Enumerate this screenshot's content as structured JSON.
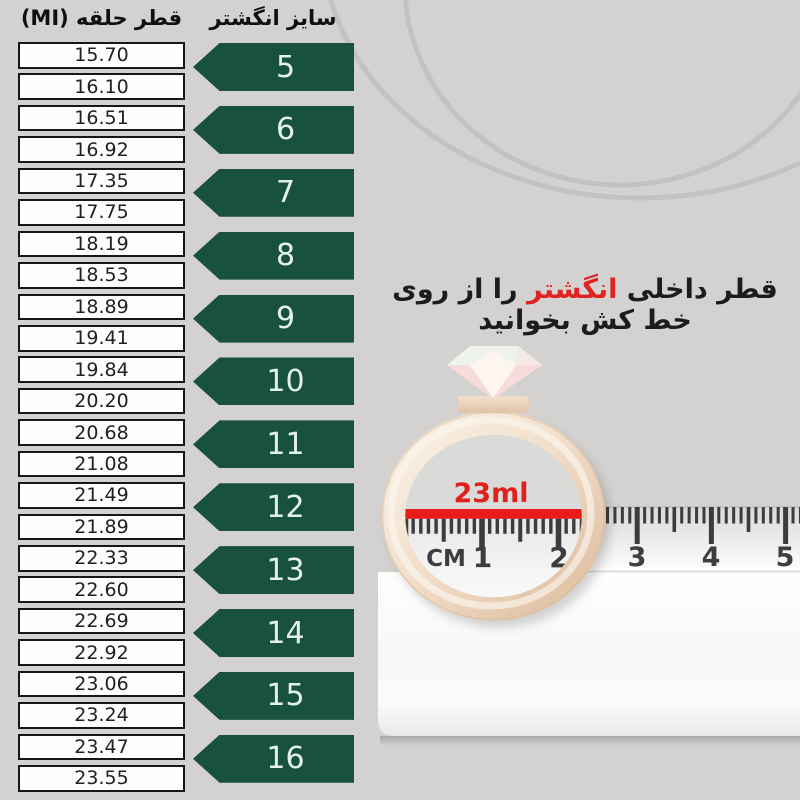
{
  "table": {
    "header_diameter": "قطر حلقه (MI)",
    "header_size": "سایز انگشتر",
    "rows": [
      {
        "size": "5",
        "diameters": [
          "15.70",
          "16.10"
        ]
      },
      {
        "size": "6",
        "diameters": [
          "16.51",
          "16.92"
        ]
      },
      {
        "size": "7",
        "diameters": [
          "17.35",
          "17.75"
        ]
      },
      {
        "size": "8",
        "diameters": [
          "18.19",
          "18.53"
        ]
      },
      {
        "size": "9",
        "diameters": [
          "18.89",
          "19.41"
        ]
      },
      {
        "size": "10",
        "diameters": [
          "19.84",
          "20.20"
        ]
      },
      {
        "size": "11",
        "diameters": [
          "20.68",
          "21.08"
        ]
      },
      {
        "size": "12",
        "diameters": [
          "21.49",
          "21.89"
        ]
      },
      {
        "size": "13",
        "diameters": [
          "22.33",
          "22.60"
        ]
      },
      {
        "size": "14",
        "diameters": [
          "22.69",
          "22.92"
        ]
      },
      {
        "size": "15",
        "diameters": [
          "23.06",
          "23.24"
        ]
      },
      {
        "size": "16",
        "diameters": [
          "23.47",
          "23.55"
        ]
      }
    ]
  },
  "instruction": {
    "before": "قطر داخلی",
    "highlight": "انگشتر",
    "after": "را از روی خط کش بخوانید",
    "highlight_color": "#e02320"
  },
  "ruler": {
    "measure_label": "23ml",
    "measure_color": "#e71c1b",
    "unit_label": "CM",
    "magnified_numbers": [
      "1",
      "2"
    ],
    "numbers": [
      "3",
      "4",
      "5"
    ]
  },
  "colors": {
    "background": "#d3d2d0",
    "arrow_green": "#18513f",
    "tick_gray": "#3c3c3c",
    "ring_band": "#eed7bf"
  }
}
